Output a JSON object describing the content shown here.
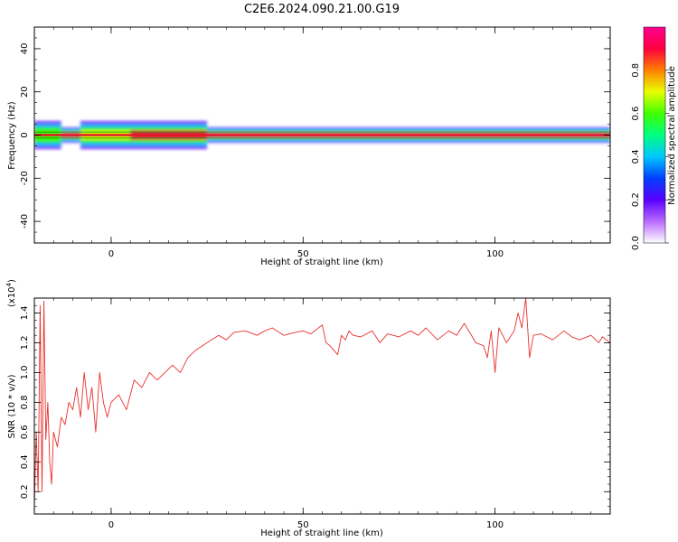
{
  "title": "C2E6.2024.090.21.00.G19",
  "chart_data": [
    {
      "type": "heatmap",
      "title": "C2E6.2024.090.21.00.G19",
      "xlabel": "Height of straight line (km)",
      "ylabel": "Frequency (Hz)",
      "xlim": [
        -20,
        130
      ],
      "ylim": [
        -50,
        50
      ],
      "x_ticks": [
        0,
        50,
        100
      ],
      "y_ticks": [
        -40,
        -20,
        0,
        20,
        40
      ],
      "colorbar": {
        "label": "Normalized spectral amplitude",
        "range": [
          0,
          1
        ],
        "ticks": [
          "0.0",
          "0.2",
          "0.4",
          "0.6",
          "0.8"
        ],
        "colors": [
          "#ffffff",
          "#b96bff",
          "#5a00ff",
          "#0040ff",
          "#00c8ff",
          "#00ff80",
          "#40ff00",
          "#e8ff00",
          "#ff8000",
          "#ff0040",
          "#ff0090"
        ]
      },
      "ridge": {
        "frequency_hz": 0,
        "envelope_hz": 2,
        "segments": [
          {
            "x0": -20,
            "x1": -13,
            "level": 0.55
          },
          {
            "x0": -13,
            "x1": -8,
            "level": 0.95
          },
          {
            "x0": -8,
            "x1": 5,
            "level": 0.7
          },
          {
            "x0": 5,
            "x1": 25,
            "level": 0.85
          },
          {
            "x0": 25,
            "x1": 130,
            "level": 0.95
          }
        ]
      }
    },
    {
      "type": "line",
      "xlabel": "Height of straight line (km)",
      "ylabel": "SNR (10 * v/v)",
      "y_multiplier": "(x10",
      "y_multiplier_exp": "4",
      "y_multiplier_close": ")",
      "xlim": [
        -20,
        130
      ],
      "ylim": [
        0.05,
        1.5
      ],
      "x_ticks": [
        0,
        50,
        100
      ],
      "y_ticks": [
        "0.2",
        "0.4",
        "0.6",
        "0.8",
        "1.0",
        "1.2",
        "1.4"
      ],
      "color": "#e8312d",
      "series": [
        {
          "name": "SNR",
          "x": [
            -20,
            -19.5,
            -19,
            -18.5,
            -18,
            -17.5,
            -17,
            -16.5,
            -16,
            -15.5,
            -15,
            -14,
            -13,
            -12,
            -11,
            -10,
            -9,
            -8,
            -7,
            -6,
            -5,
            -4,
            -3,
            -2,
            -1,
            0,
            2,
            4,
            6,
            8,
            10,
            12,
            14,
            16,
            18,
            20,
            22,
            25,
            28,
            30,
            32,
            35,
            38,
            40,
            42,
            45,
            48,
            50,
            52,
            54,
            55,
            56,
            57,
            58,
            59,
            60,
            61,
            62,
            63,
            65,
            68,
            70,
            72,
            75,
            78,
            80,
            82,
            85,
            88,
            90,
            92,
            95,
            97,
            98,
            99,
            100,
            101,
            102,
            103,
            105,
            106,
            107,
            108,
            109,
            110,
            112,
            115,
            118,
            120,
            122,
            125,
            127,
            128,
            129,
            130
          ],
          "y": [
            0.1,
            0.6,
            0.2,
            1.45,
            0.2,
            1.48,
            0.55,
            0.8,
            0.4,
            0.25,
            0.6,
            0.5,
            0.7,
            0.65,
            0.8,
            0.75,
            0.9,
            0.7,
            1.0,
            0.75,
            0.9,
            0.6,
            1.0,
            0.8,
            0.7,
            0.8,
            0.85,
            0.75,
            0.95,
            0.9,
            1.0,
            0.95,
            1.0,
            1.05,
            1.0,
            1.1,
            1.15,
            1.2,
            1.25,
            1.22,
            1.27,
            1.28,
            1.25,
            1.28,
            1.3,
            1.25,
            1.27,
            1.28,
            1.26,
            1.3,
            1.32,
            1.2,
            1.18,
            1.15,
            1.12,
            1.25,
            1.22,
            1.28,
            1.25,
            1.24,
            1.28,
            1.2,
            1.26,
            1.24,
            1.28,
            1.25,
            1.3,
            1.22,
            1.28,
            1.25,
            1.33,
            1.2,
            1.18,
            1.1,
            1.28,
            1.0,
            1.3,
            1.25,
            1.2,
            1.28,
            1.4,
            1.3,
            1.5,
            1.1,
            1.25,
            1.26,
            1.22,
            1.28,
            1.24,
            1.22,
            1.25,
            1.2,
            1.24,
            1.22,
            1.2
          ]
        }
      ]
    }
  ]
}
